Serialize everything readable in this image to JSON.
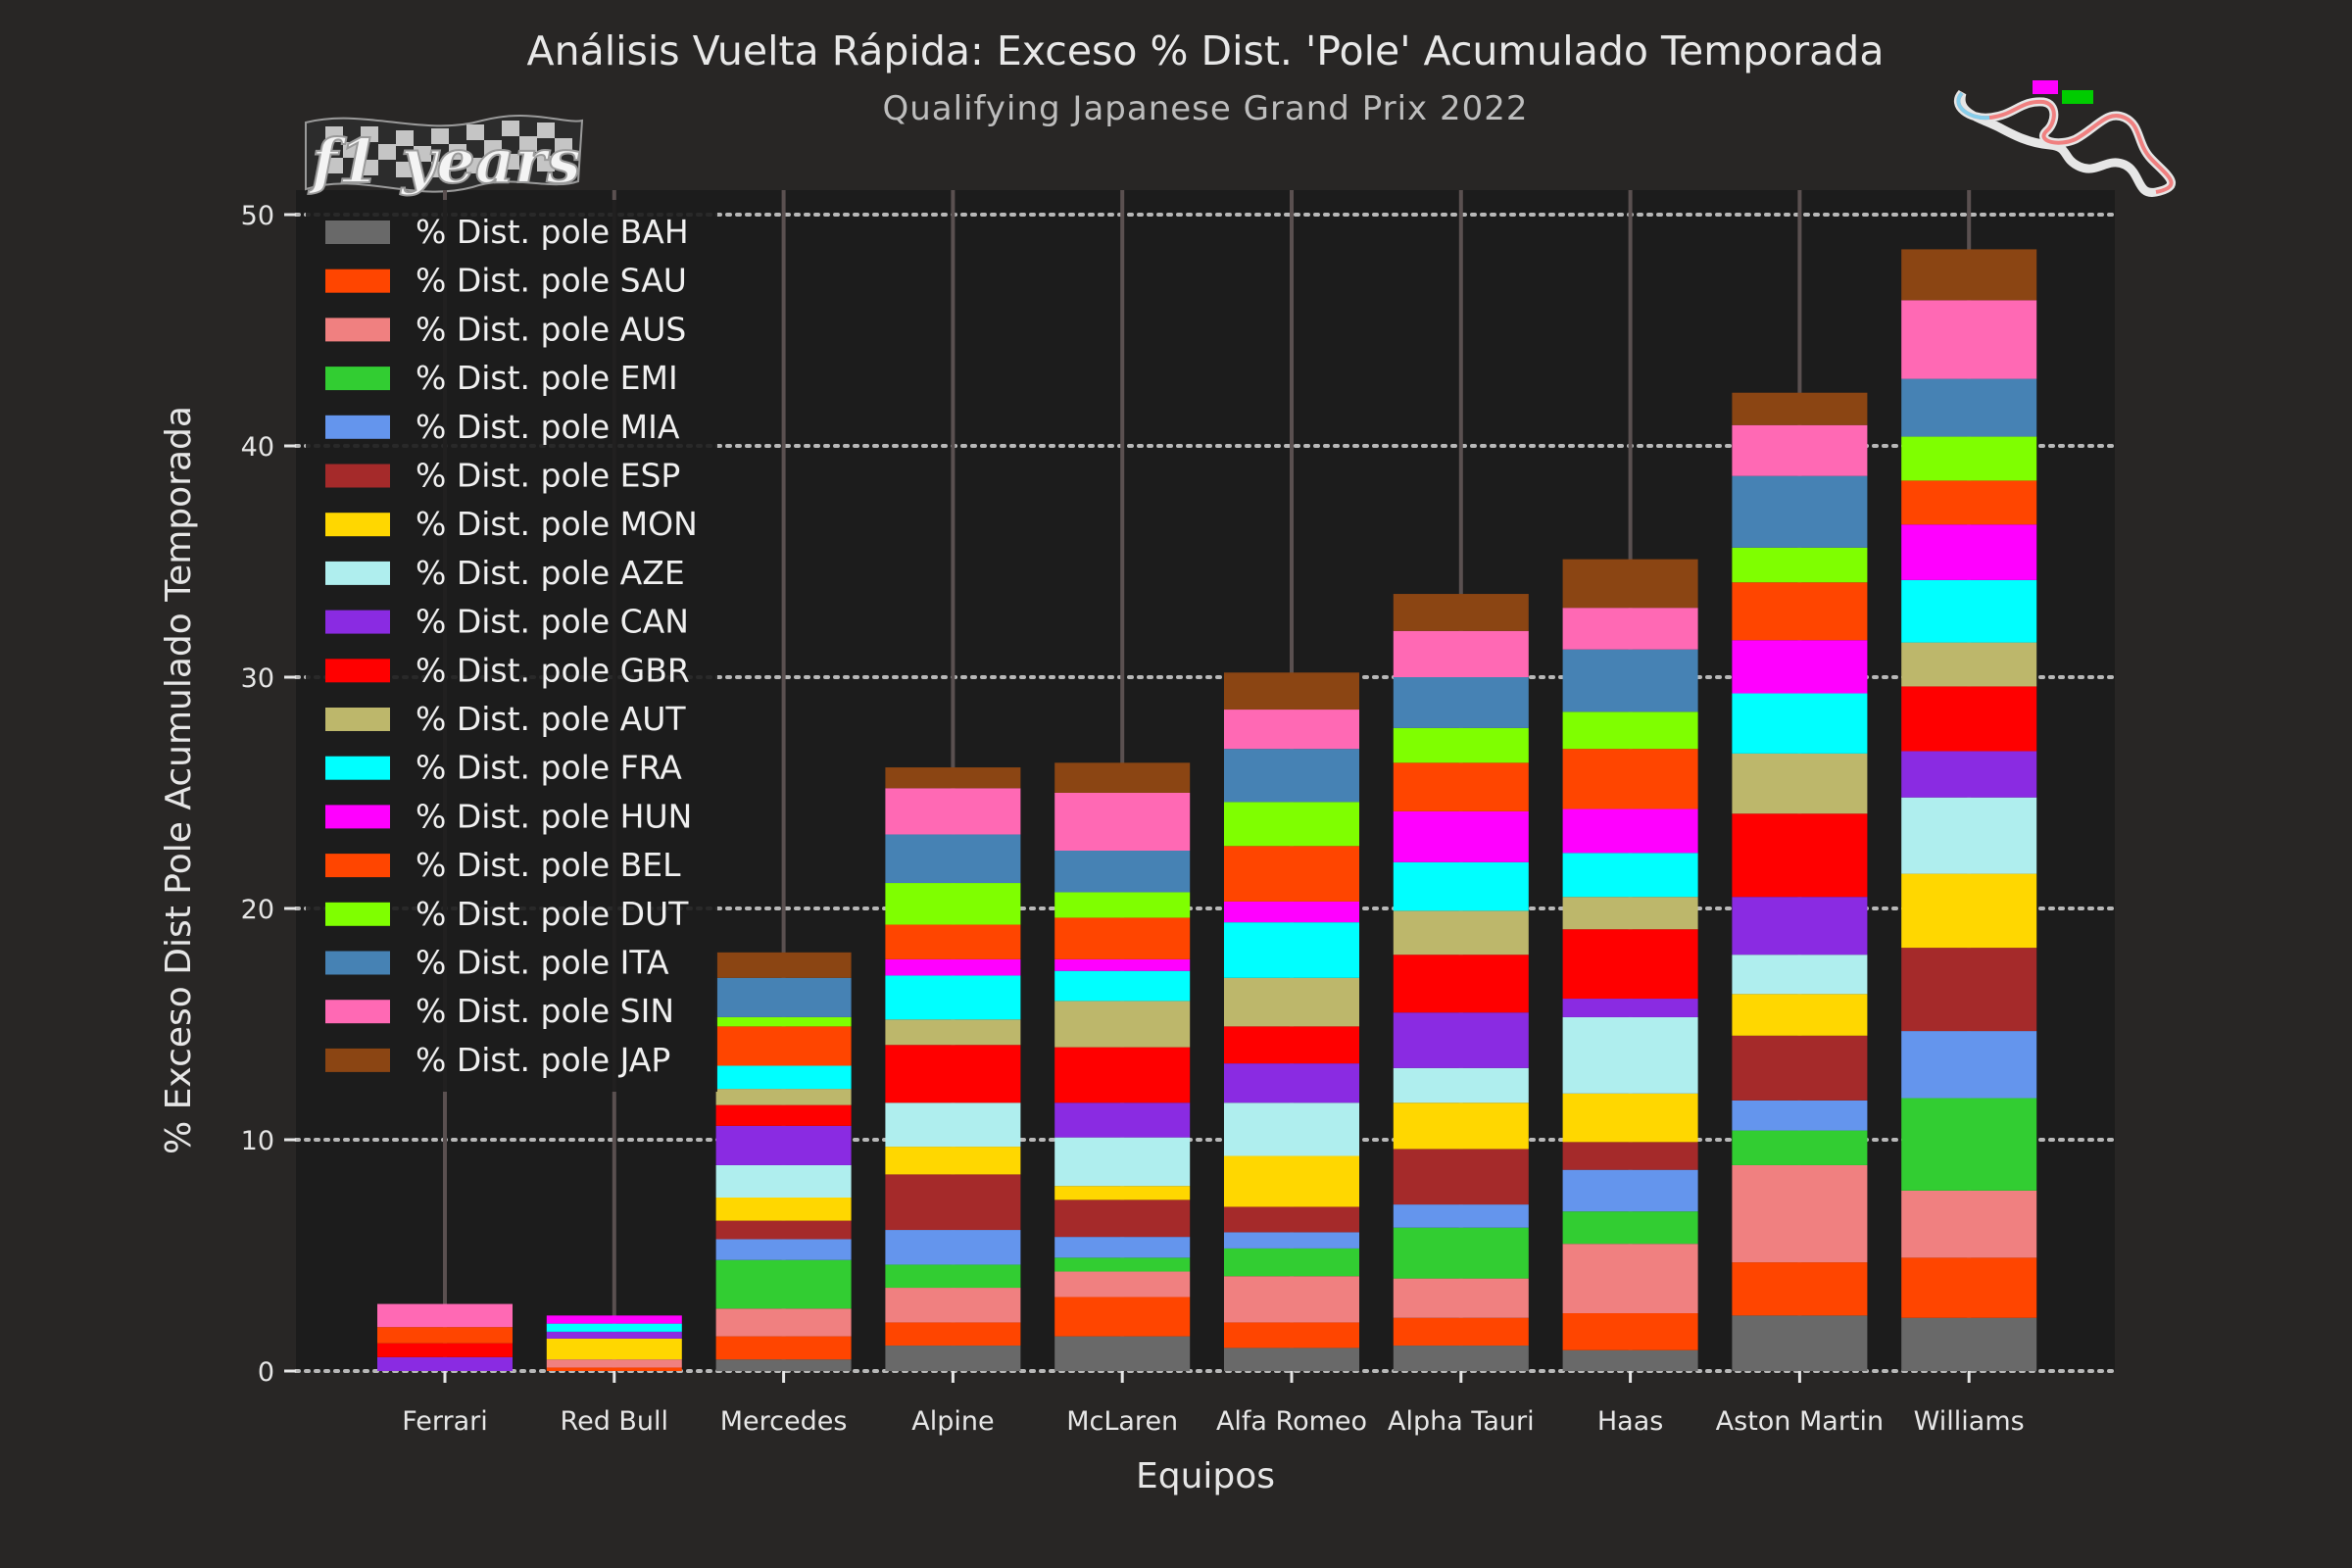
{
  "chart_data": {
    "type": "bar",
    "stacked": true,
    "title": "Análisis Vuelta Rápida: Exceso % Dist. 'Pole' Acumulado Temporada",
    "subtitle": "Qualifying Japanese Grand Prix 2022",
    "xlabel": "Equipos",
    "ylabel": "% Exceso Dist Pole Acumulado Temporada",
    "ylim": [
      0,
      51
    ],
    "yticks": [
      0,
      10,
      20,
      30,
      40,
      50
    ],
    "grid": true,
    "legend_position": "top-left",
    "logo_text": "f1 years",
    "categories": [
      "Ferrari",
      "Red Bull",
      "Mercedes",
      "Alpine",
      "McLaren",
      "Alfa Romeo",
      "Alpha Tauri",
      "Haas",
      "Aston Martin",
      "Williams"
    ],
    "series": [
      {
        "name": "% Dist. pole BAH",
        "color": "#696969",
        "values": [
          0.0,
          0.0,
          0.5,
          1.1,
          1.5,
          1.0,
          1.1,
          0.9,
          2.4,
          2.3
        ]
      },
      {
        "name": "% Dist. pole SAU",
        "color": "#ff4500",
        "values": [
          0.0,
          0.15,
          1.0,
          1.0,
          1.7,
          1.1,
          1.2,
          1.6,
          2.3,
          2.6
        ]
      },
      {
        "name": "% Dist. pole AUS",
        "color": "#f08080",
        "values": [
          0.0,
          0.35,
          1.2,
          1.5,
          1.1,
          2.0,
          1.7,
          3.0,
          4.2,
          2.9
        ]
      },
      {
        "name": "% Dist. pole EMI",
        "color": "#32cd32",
        "values": [
          0.0,
          0.0,
          2.1,
          1.0,
          0.6,
          1.2,
          2.2,
          1.4,
          1.5,
          4.0
        ]
      },
      {
        "name": "% Dist. pole MIA",
        "color": "#6495ed",
        "values": [
          0.0,
          0.0,
          0.9,
          1.5,
          0.9,
          0.7,
          1.0,
          1.8,
          1.3,
          2.9
        ]
      },
      {
        "name": "% Dist. pole ESP",
        "color": "#a52a2a",
        "values": [
          0.0,
          0.0,
          0.8,
          2.4,
          1.6,
          1.1,
          2.4,
          1.2,
          2.8,
          3.6
        ]
      },
      {
        "name": "% Dist. pole MON",
        "color": "#ffd700",
        "values": [
          0.0,
          0.9,
          1.0,
          1.2,
          0.6,
          2.2,
          2.0,
          2.1,
          1.8,
          3.2
        ]
      },
      {
        "name": "% Dist. pole AZE",
        "color": "#afeeee",
        "values": [
          0.0,
          0.0,
          1.4,
          1.9,
          2.1,
          2.3,
          1.5,
          3.3,
          1.7,
          3.3
        ]
      },
      {
        "name": "% Dist. pole CAN",
        "color": "#8a2be2",
        "values": [
          0.6,
          0.3,
          1.7,
          0.0,
          1.5,
          1.7,
          2.4,
          0.8,
          2.5,
          2.0
        ]
      },
      {
        "name": "% Dist. pole GBR",
        "color": "#ff0000",
        "values": [
          0.6,
          0.0,
          0.9,
          2.5,
          2.4,
          1.6,
          2.5,
          3.0,
          3.6,
          2.8
        ]
      },
      {
        "name": "% Dist. pole AUT",
        "color": "#bdb76b",
        "values": [
          0.0,
          0.0,
          0.7,
          1.1,
          2.0,
          2.1,
          1.9,
          1.4,
          2.6,
          1.9
        ]
      },
      {
        "name": "% Dist. pole FRA",
        "color": "#00ffff",
        "values": [
          0.0,
          0.35,
          1.0,
          1.9,
          1.3,
          2.4,
          2.1,
          1.9,
          2.6,
          2.7
        ]
      },
      {
        "name": "% Dist. pole HUN",
        "color": "#ff00ff",
        "values": [
          0.0,
          0.35,
          0.0,
          0.7,
          0.5,
          0.9,
          2.2,
          1.9,
          2.3,
          2.4
        ]
      },
      {
        "name": "% Dist. pole BEL",
        "color": "#ff4500",
        "values": [
          0.7,
          0.0,
          1.7,
          1.5,
          1.8,
          2.4,
          2.1,
          2.6,
          2.5,
          1.9
        ]
      },
      {
        "name": "% Dist. pole DUT",
        "color": "#7fff00",
        "values": [
          0.0,
          0.0,
          0.4,
          1.8,
          1.1,
          1.9,
          1.5,
          1.6,
          1.5,
          1.9
        ]
      },
      {
        "name": "% Dist. pole ITA",
        "color": "#4682b4",
        "values": [
          0.0,
          0.0,
          1.7,
          2.1,
          1.8,
          2.3,
          2.2,
          2.7,
          3.1,
          2.5
        ]
      },
      {
        "name": "% Dist. pole SIN",
        "color": "#ff69b4",
        "values": [
          1.0,
          0.0,
          0.0,
          2.0,
          2.5,
          1.7,
          2.0,
          1.8,
          2.2,
          3.4
        ]
      },
      {
        "name": "% Dist. pole JAP",
        "color": "#8b4513",
        "values": [
          0.0,
          0.0,
          1.1,
          0.9,
          1.3,
          1.6,
          1.6,
          2.1,
          1.4,
          2.2
        ]
      }
    ]
  }
}
